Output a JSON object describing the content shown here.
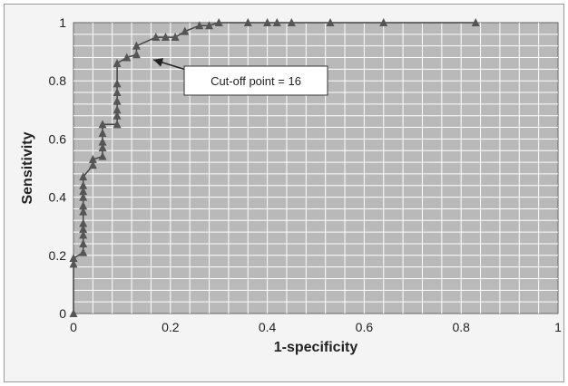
{
  "chart_data": {
    "type": "scatter",
    "title": "",
    "xlabel": "1-specificity",
    "ylabel": "Sensitivity",
    "xlim": [
      0,
      1
    ],
    "ylim": [
      0,
      1
    ],
    "x_ticks": [
      "0",
      "0.2",
      "0.4",
      "0.6",
      "0.8",
      "1"
    ],
    "y_ticks": [
      "0",
      "0.2",
      "0.4",
      "0.6",
      "0.8",
      "1"
    ],
    "grid": true,
    "grid_minor_x": 0.04,
    "grid_minor_y": 0.04,
    "colors": {
      "plot_bg": "#b9b9b9",
      "grid": "#ffffff",
      "marker": "#555555",
      "line": "#444444"
    },
    "series": [
      {
        "marker": "triangle",
        "points": [
          [
            0,
            0
          ],
          [
            0,
            0.17
          ],
          [
            0,
            0.19
          ],
          [
            0.02,
            0.21
          ],
          [
            0.02,
            0.24
          ],
          [
            0.02,
            0.27
          ],
          [
            0.02,
            0.29
          ],
          [
            0.02,
            0.31
          ],
          [
            0.02,
            0.35
          ],
          [
            0.02,
            0.37
          ],
          [
            0.02,
            0.4
          ],
          [
            0.02,
            0.42
          ],
          [
            0.02,
            0.44
          ],
          [
            0.02,
            0.47
          ],
          [
            0.04,
            0.51
          ],
          [
            0.04,
            0.53
          ],
          [
            0.06,
            0.54
          ],
          [
            0.06,
            0.57
          ],
          [
            0.06,
            0.59
          ],
          [
            0.06,
            0.62
          ],
          [
            0.06,
            0.65
          ],
          [
            0.09,
            0.65
          ],
          [
            0.09,
            0.68
          ],
          [
            0.09,
            0.7
          ],
          [
            0.09,
            0.73
          ],
          [
            0.09,
            0.76
          ],
          [
            0.09,
            0.79
          ],
          [
            0.09,
            0.86
          ],
          [
            0.11,
            0.88
          ],
          [
            0.13,
            0.89
          ],
          [
            0.13,
            0.92
          ],
          [
            0.17,
            0.95
          ],
          [
            0.19,
            0.95
          ],
          [
            0.21,
            0.95
          ],
          [
            0.23,
            0.97
          ],
          [
            0.26,
            0.99
          ],
          [
            0.28,
            0.99
          ],
          [
            0.3,
            1.0
          ],
          [
            0.36,
            1.0
          ],
          [
            0.4,
            1.0
          ],
          [
            0.42,
            1.0
          ],
          [
            0.45,
            1.0
          ],
          [
            0.53,
            1.0
          ],
          [
            0.64,
            1.0
          ],
          [
            0.83,
            1.0
          ]
        ]
      }
    ],
    "annotation": {
      "text": "Cut-off point = 16",
      "points_to": [
        0.15,
        0.885
      ]
    }
  }
}
